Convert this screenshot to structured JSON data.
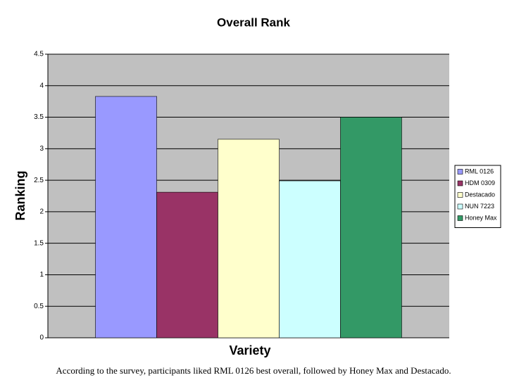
{
  "chart_data": {
    "type": "bar",
    "title": "Overall Rank",
    "x_label": "Variety",
    "y_label": "Ranking",
    "caption": "According to the survey, participants liked RML 0126 best overall, followed by Honey Max and Destacado.",
    "categories": [
      null
    ],
    "series": [
      {
        "name": "RML 0126",
        "color": "#9999ff",
        "values": [
          3.83
        ]
      },
      {
        "name": "HDM 0309",
        "color": "#993366",
        "values": [
          2.31
        ]
      },
      {
        "name": "Destacado",
        "color": "#ffffcc",
        "values": [
          3.15
        ]
      },
      {
        "name": "NUN 7223",
        "color": "#ccffff",
        "values": [
          2.49
        ]
      },
      {
        "name": "Honey Max",
        "color": "#339966",
        "values": [
          3.5
        ]
      }
    ],
    "ylim": [
      0,
      4.5
    ],
    "yticks": [
      0,
      0.5,
      1,
      1.5,
      2,
      2.5,
      3,
      3.5,
      4,
      4.5
    ],
    "grid": true,
    "legend": "right"
  }
}
